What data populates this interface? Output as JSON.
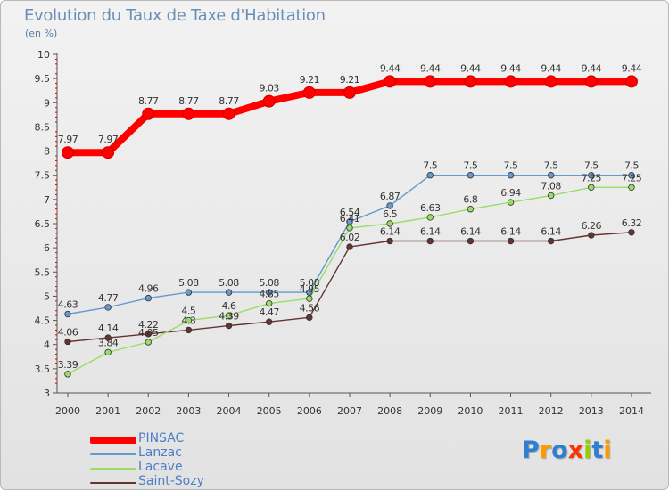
{
  "header": {
    "title": "Evolution du Taux de Taxe d'Habitation",
    "unit": "(en %)"
  },
  "chart_data": {
    "type": "line",
    "title": "Evolution du Taux de Taxe d'Habitation",
    "ylabel": "(en %)",
    "xlabel": "",
    "x": [
      "2000",
      "2001",
      "2002",
      "2003",
      "2004",
      "2005",
      "2006",
      "2007",
      "2008",
      "2009",
      "2010",
      "2011",
      "2012",
      "2013",
      "2014"
    ],
    "yticks": [
      "3",
      "3.5",
      "4",
      "4.5",
      "5",
      "5.5",
      "6",
      "6.5",
      "7",
      "7.5",
      "8",
      "8.5",
      "9",
      "9.5",
      "10"
    ],
    "ylim": [
      3,
      10
    ],
    "grid": false,
    "legend_position": "bottom-left",
    "series": [
      {
        "name": "PINSAC",
        "color": "#ff0000",
        "values": [
          7.97,
          7.97,
          8.77,
          8.77,
          8.77,
          9.03,
          9.21,
          9.21,
          9.44,
          9.44,
          9.44,
          9.44,
          9.44,
          9.44,
          9.44
        ],
        "labels": [
          "7.97",
          "7.97",
          "8.77",
          "8.77",
          "8.77",
          "9.03",
          "9.21",
          "9.21",
          "9.44",
          "9.44",
          "9.44",
          "9.44",
          "9.44",
          "9.44",
          "9.44"
        ]
      },
      {
        "name": "Lanzac",
        "color": "#6699cc",
        "values": [
          4.63,
          4.77,
          4.96,
          5.08,
          5.08,
          5.08,
          5.08,
          6.54,
          6.87,
          7.5,
          7.5,
          7.5,
          7.5,
          7.5,
          7.5
        ],
        "labels": [
          "4.63",
          "4.77",
          "4.96",
          "5.08",
          "5.08",
          "5.08",
          "5.08",
          "6.54",
          "6.87",
          "7.5",
          "7.5",
          "7.5",
          "7.5",
          "7.5",
          "7.5"
        ]
      },
      {
        "name": "Lacave",
        "color": "#99dd66",
        "values": [
          3.39,
          3.84,
          4.05,
          4.5,
          4.6,
          4.85,
          4.95,
          6.41,
          6.5,
          6.63,
          6.8,
          6.94,
          7.08,
          7.25,
          7.25
        ],
        "labels": [
          "3.39",
          "3.84",
          "4.05",
          "4.5",
          "4.6",
          "4.85",
          "4.95",
          "6.41",
          "6.5",
          "6.63",
          "6.8",
          "6.94",
          "7.08",
          "7.25",
          "7.25"
        ]
      },
      {
        "name": "Saint-Sozy",
        "color": "#663333",
        "values": [
          4.06,
          4.14,
          4.22,
          4.3,
          4.39,
          4.47,
          4.56,
          6.02,
          6.14,
          6.14,
          6.14,
          6.14,
          6.14,
          6.26,
          6.32
        ],
        "labels": [
          "4.06",
          "4.14",
          "4.22",
          "4.3",
          "4.39",
          "4.47",
          "4.56",
          "6.02",
          "6.14",
          "6.14",
          "6.14",
          "6.14",
          "6.14",
          "6.26",
          "6.32"
        ]
      }
    ]
  },
  "legend": {
    "items": [
      {
        "label": "PINSAC",
        "color": "#ff0000"
      },
      {
        "label": "Lanzac",
        "color": "#6699cc"
      },
      {
        "label": "Lacave",
        "color": "#99dd66"
      },
      {
        "label": "Saint-Sozy",
        "color": "#663333"
      }
    ]
  },
  "logo": {
    "text": "Proxiti",
    "letters": [
      {
        "char": "P",
        "color": "#2f7fd0"
      },
      {
        "char": "r",
        "color": "#ff9900"
      },
      {
        "char": "o",
        "color": "#2f7fd0"
      },
      {
        "char": "x",
        "color": "#ff3300"
      },
      {
        "char": "i",
        "color": "#99cc00"
      },
      {
        "char": "t",
        "color": "#2f7fd0"
      },
      {
        "char": "i",
        "color": "#ff9900"
      }
    ]
  }
}
